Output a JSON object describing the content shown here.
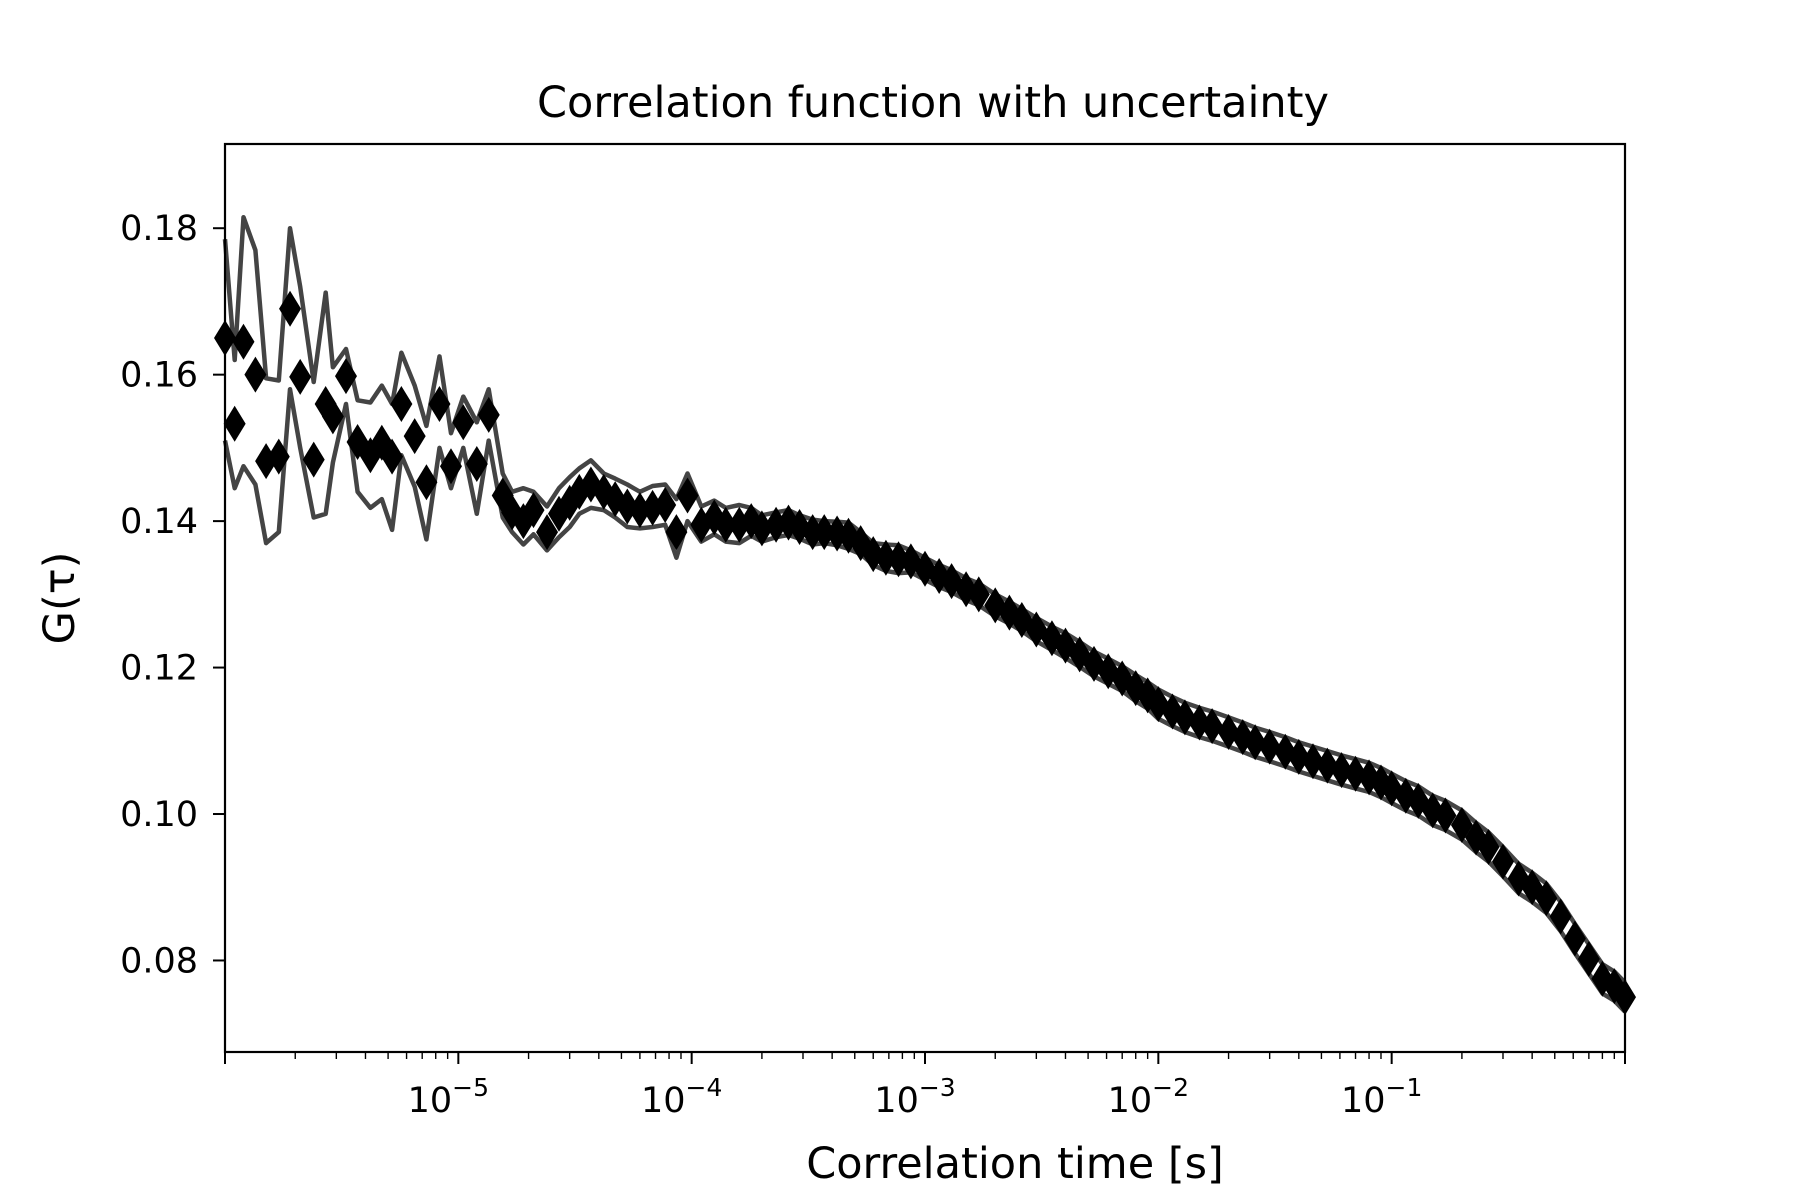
{
  "chart_data": {
    "type": "scatter",
    "title": "Correlation function with uncertainty",
    "xlabel": "Correlation time [s]",
    "ylabel": "G(τ)",
    "xscale": "log",
    "xlim": [
      1e-06,
      1.0
    ],
    "ylim": [
      0.0675,
      0.1915
    ],
    "grid": false,
    "legend": "none",
    "x_ticks": [
      {
        "value": 1e-05,
        "base": "10",
        "exp": "−5"
      },
      {
        "value": 0.0001,
        "base": "10",
        "exp": "−4"
      },
      {
        "value": 0.001,
        "base": "10",
        "exp": "−3"
      },
      {
        "value": 0.01,
        "base": "10",
        "exp": "−2"
      },
      {
        "value": 0.1,
        "base": "10",
        "exp": "−1"
      }
    ],
    "y_ticks": [
      {
        "value": 0.08,
        "label": "0.08"
      },
      {
        "value": 0.1,
        "label": "0.10"
      },
      {
        "value": 0.12,
        "label": "0.12"
      },
      {
        "value": 0.14,
        "label": "0.14"
      },
      {
        "value": 0.16,
        "label": "0.16"
      },
      {
        "value": 0.18,
        "label": "0.18"
      }
    ],
    "colors": {
      "marker": "#000000",
      "band": "#444444",
      "frame": "#000000"
    },
    "series": [
      {
        "marker": "diamond",
        "points": [
          [
            1e-06,
            0.165
          ],
          [
            1.1e-06,
            0.1533
          ],
          [
            1.2e-06,
            0.1645
          ],
          [
            1.35e-06,
            0.16
          ],
          [
            1.5e-06,
            0.1482
          ],
          [
            1.7e-06,
            0.1488
          ],
          [
            1.9e-06,
            0.169
          ],
          [
            2.1e-06,
            0.1597
          ],
          [
            2.4e-06,
            0.1484
          ],
          [
            2.7e-06,
            0.156
          ],
          [
            2.9e-06,
            0.1543
          ],
          [
            3.3e-06,
            0.1598
          ],
          [
            3.7e-06,
            0.1508
          ],
          [
            4.2e-06,
            0.149
          ],
          [
            4.7e-06,
            0.1507
          ],
          [
            5.2e-06,
            0.1488
          ],
          [
            5.7e-06,
            0.156
          ],
          [
            6.5e-06,
            0.1516
          ],
          [
            7.3e-06,
            0.1453
          ],
          [
            8.3e-06,
            0.156
          ],
          [
            9.3e-06,
            0.1475
          ],
          [
            1.05e-05,
            0.1535
          ],
          [
            1.2e-05,
            0.1478
          ],
          [
            1.35e-05,
            0.1545
          ],
          [
            1.55e-05,
            0.1435
          ],
          [
            1.7e-05,
            0.1412
          ],
          [
            1.9e-05,
            0.14
          ],
          [
            2.1e-05,
            0.1415
          ],
          [
            2.4e-05,
            0.1385
          ],
          [
            2.7e-05,
            0.141
          ],
          [
            3e-05,
            0.1425
          ],
          [
            3.3e-05,
            0.144
          ],
          [
            3.7e-05,
            0.145
          ],
          [
            4.2e-05,
            0.144
          ],
          [
            4.7e-05,
            0.143
          ],
          [
            5.3e-05,
            0.142
          ],
          [
            6e-05,
            0.1415
          ],
          [
            6.8e-05,
            0.1418
          ],
          [
            7.7e-05,
            0.1422
          ],
          [
            8.6e-05,
            0.1385
          ],
          [
            9.6e-05,
            0.1435
          ],
          [
            0.00011,
            0.1395
          ],
          [
            0.000125,
            0.1405
          ],
          [
            0.00014,
            0.1395
          ],
          [
            0.00016,
            0.1395
          ],
          [
            0.00018,
            0.14
          ],
          [
            0.0002,
            0.139
          ],
          [
            0.00023,
            0.1395
          ],
          [
            0.00026,
            0.1398
          ],
          [
            0.00029,
            0.1392
          ],
          [
            0.00033,
            0.1385
          ],
          [
            0.00037,
            0.1385
          ],
          [
            0.00042,
            0.1383
          ],
          [
            0.00047,
            0.138
          ],
          [
            0.00053,
            0.137
          ],
          [
            0.0006,
            0.1355
          ],
          [
            0.00068,
            0.135
          ],
          [
            0.00077,
            0.1348
          ],
          [
            0.00087,
            0.1345
          ],
          [
            0.001,
            0.1335
          ],
          [
            0.00115,
            0.1325
          ],
          [
            0.0013,
            0.1318
          ],
          [
            0.0015,
            0.1307
          ],
          [
            0.0017,
            0.13
          ],
          [
            0.002,
            0.1285
          ],
          [
            0.0023,
            0.1275
          ],
          [
            0.0026,
            0.1265
          ],
          [
            0.003,
            0.1252
          ],
          [
            0.0035,
            0.124
          ],
          [
            0.004,
            0.123
          ],
          [
            0.0046,
            0.1218
          ],
          [
            0.0053,
            0.1205
          ],
          [
            0.0061,
            0.1195
          ],
          [
            0.007,
            0.1185
          ],
          [
            0.008,
            0.1172
          ],
          [
            0.009,
            0.1162
          ],
          [
            0.01,
            0.115
          ],
          [
            0.0115,
            0.114
          ],
          [
            0.013,
            0.1132
          ],
          [
            0.015,
            0.1125
          ],
          [
            0.017,
            0.112
          ],
          [
            0.02,
            0.1112
          ],
          [
            0.023,
            0.1105
          ],
          [
            0.026,
            0.1098
          ],
          [
            0.03,
            0.1092
          ],
          [
            0.035,
            0.1085
          ],
          [
            0.04,
            0.1078
          ],
          [
            0.046,
            0.1072
          ],
          [
            0.053,
            0.1066
          ],
          [
            0.061,
            0.106
          ],
          [
            0.07,
            0.1055
          ],
          [
            0.08,
            0.105
          ],
          [
            0.09,
            0.1043
          ],
          [
            0.1,
            0.1035
          ],
          [
            0.115,
            0.1025
          ],
          [
            0.13,
            0.1018
          ],
          [
            0.15,
            0.1005
          ],
          [
            0.17,
            0.0998
          ],
          [
            0.2,
            0.0985
          ],
          [
            0.23,
            0.0968
          ],
          [
            0.26,
            0.0955
          ],
          [
            0.3,
            0.0935
          ],
          [
            0.35,
            0.0912
          ],
          [
            0.4,
            0.09
          ],
          [
            0.46,
            0.0885
          ],
          [
            0.53,
            0.086
          ],
          [
            0.61,
            0.083
          ],
          [
            0.7,
            0.0802
          ],
          [
            0.8,
            0.0775
          ],
          [
            0.9,
            0.0765
          ],
          [
            1.0,
            0.075
          ]
        ]
      }
    ],
    "upper_band": [
      [
        1e-06,
        0.1785
      ],
      [
        1.1e-06,
        0.162
      ],
      [
        1.2e-06,
        0.1815
      ],
      [
        1.35e-06,
        0.177
      ],
      [
        1.5e-06,
        0.1595
      ],
      [
        1.7e-06,
        0.1592
      ],
      [
        1.9e-06,
        0.18
      ],
      [
        2.1e-06,
        0.172
      ],
      [
        2.4e-06,
        0.159
      ],
      [
        2.7e-06,
        0.1712
      ],
      [
        2.9e-06,
        0.161
      ],
      [
        3.3e-06,
        0.1635
      ],
      [
        3.7e-06,
        0.1565
      ],
      [
        4.2e-06,
        0.1562
      ],
      [
        4.7e-06,
        0.1585
      ],
      [
        5.2e-06,
        0.156
      ],
      [
        5.7e-06,
        0.163
      ],
      [
        6.5e-06,
        0.1585
      ],
      [
        7.3e-06,
        0.153
      ],
      [
        8.3e-06,
        0.1625
      ],
      [
        9.3e-06,
        0.152
      ],
      [
        1.05e-05,
        0.157
      ],
      [
        1.2e-05,
        0.1535
      ],
      [
        1.35e-05,
        0.158
      ],
      [
        1.55e-05,
        0.1465
      ],
      [
        1.7e-05,
        0.144
      ],
      [
        1.9e-05,
        0.1445
      ],
      [
        2.1e-05,
        0.144
      ],
      [
        2.4e-05,
        0.142
      ],
      [
        2.7e-05,
        0.1445
      ],
      [
        3e-05,
        0.146
      ],
      [
        3.3e-05,
        0.1472
      ],
      [
        3.7e-05,
        0.1483
      ],
      [
        4.2e-05,
        0.1465
      ],
      [
        4.7e-05,
        0.1458
      ],
      [
        5.3e-05,
        0.145
      ],
      [
        6e-05,
        0.144
      ],
      [
        6.8e-05,
        0.1448
      ],
      [
        7.7e-05,
        0.145
      ],
      [
        8.6e-05,
        0.143
      ],
      [
        9.6e-05,
        0.1465
      ],
      [
        0.00011,
        0.142
      ],
      [
        0.000125,
        0.1428
      ],
      [
        0.00014,
        0.1418
      ],
      [
        0.00016,
        0.1422
      ],
      [
        0.00018,
        0.1418
      ],
      [
        0.0002,
        0.1408
      ],
      [
        0.00023,
        0.1412
      ],
      [
        0.00026,
        0.1415
      ],
      [
        0.00029,
        0.1408
      ],
      [
        0.00033,
        0.1402
      ],
      [
        0.00037,
        0.14
      ],
      [
        0.00042,
        0.1399
      ],
      [
        0.00047,
        0.1398
      ],
      [
        0.00053,
        0.1385
      ],
      [
        0.0006,
        0.137
      ],
      [
        0.00068,
        0.1368
      ],
      [
        0.00077,
        0.1367
      ],
      [
        0.00087,
        0.136
      ],
      [
        0.001,
        0.135
      ],
      [
        0.00115,
        0.134
      ],
      [
        0.0013,
        0.1333
      ],
      [
        0.0015,
        0.1322
      ],
      [
        0.0017,
        0.1315
      ],
      [
        0.002,
        0.13
      ],
      [
        0.0023,
        0.129
      ],
      [
        0.0026,
        0.128
      ],
      [
        0.003,
        0.1268
      ],
      [
        0.0035,
        0.1256
      ],
      [
        0.004,
        0.1247
      ],
      [
        0.0046,
        0.1235
      ],
      [
        0.0053,
        0.1222
      ],
      [
        0.0061,
        0.1212
      ],
      [
        0.007,
        0.1202
      ],
      [
        0.008,
        0.119
      ],
      [
        0.009,
        0.118
      ],
      [
        0.01,
        0.117
      ],
      [
        0.0115,
        0.116
      ],
      [
        0.013,
        0.1152
      ],
      [
        0.015,
        0.1145
      ],
      [
        0.017,
        0.114
      ],
      [
        0.02,
        0.1132
      ],
      [
        0.023,
        0.1125
      ],
      [
        0.026,
        0.1118
      ],
      [
        0.03,
        0.1112
      ],
      [
        0.035,
        0.1105
      ],
      [
        0.04,
        0.1098
      ],
      [
        0.046,
        0.1092
      ],
      [
        0.053,
        0.1086
      ],
      [
        0.061,
        0.108
      ],
      [
        0.07,
        0.1075
      ],
      [
        0.08,
        0.107
      ],
      [
        0.09,
        0.1063
      ],
      [
        0.1,
        0.1055
      ],
      [
        0.115,
        0.1045
      ],
      [
        0.13,
        0.1038
      ],
      [
        0.15,
        0.1025
      ],
      [
        0.17,
        0.1018
      ],
      [
        0.2,
        0.1005
      ],
      [
        0.23,
        0.0988
      ],
      [
        0.26,
        0.0975
      ],
      [
        0.3,
        0.0955
      ],
      [
        0.35,
        0.0932
      ],
      [
        0.4,
        0.092
      ],
      [
        0.46,
        0.0905
      ],
      [
        0.53,
        0.088
      ],
      [
        0.61,
        0.085
      ],
      [
        0.7,
        0.0822
      ],
      [
        0.8,
        0.0795
      ],
      [
        0.9,
        0.0785
      ],
      [
        1.0,
        0.077
      ]
    ],
    "lower_band": [
      [
        1e-06,
        0.151
      ],
      [
        1.1e-06,
        0.1445
      ],
      [
        1.2e-06,
        0.1475
      ],
      [
        1.35e-06,
        0.145
      ],
      [
        1.5e-06,
        0.137
      ],
      [
        1.7e-06,
        0.1385
      ],
      [
        1.9e-06,
        0.158
      ],
      [
        2.1e-06,
        0.15
      ],
      [
        2.4e-06,
        0.1405
      ],
      [
        2.7e-06,
        0.141
      ],
      [
        2.9e-06,
        0.148
      ],
      [
        3.3e-06,
        0.156
      ],
      [
        3.7e-06,
        0.144
      ],
      [
        4.2e-06,
        0.1418
      ],
      [
        4.7e-06,
        0.143
      ],
      [
        5.2e-06,
        0.1388
      ],
      [
        5.7e-06,
        0.149
      ],
      [
        6.5e-06,
        0.1447
      ],
      [
        7.3e-06,
        0.1375
      ],
      [
        8.3e-06,
        0.15
      ],
      [
        9.3e-06,
        0.1445
      ],
      [
        1.05e-05,
        0.15
      ],
      [
        1.2e-05,
        0.141
      ],
      [
        1.35e-05,
        0.151
      ],
      [
        1.55e-05,
        0.1405
      ],
      [
        1.7e-05,
        0.1385
      ],
      [
        1.9e-05,
        0.1368
      ],
      [
        2.1e-05,
        0.1382
      ],
      [
        2.4e-05,
        0.136
      ],
      [
        2.7e-05,
        0.1378
      ],
      [
        3e-05,
        0.1392
      ],
      [
        3.3e-05,
        0.141
      ],
      [
        3.7e-05,
        0.1418
      ],
      [
        4.2e-05,
        0.1415
      ],
      [
        4.7e-05,
        0.1405
      ],
      [
        5.3e-05,
        0.1392
      ],
      [
        6e-05,
        0.139
      ],
      [
        6.8e-05,
        0.1392
      ],
      [
        7.7e-05,
        0.1395
      ],
      [
        8.6e-05,
        0.135
      ],
      [
        9.6e-05,
        0.14
      ],
      [
        0.00011,
        0.1372
      ],
      [
        0.000125,
        0.1382
      ],
      [
        0.00014,
        0.1372
      ],
      [
        0.00016,
        0.137
      ],
      [
        0.00018,
        0.138
      ],
      [
        0.0002,
        0.1372
      ],
      [
        0.00023,
        0.1378
      ],
      [
        0.00026,
        0.1381
      ],
      [
        0.00029,
        0.1376
      ],
      [
        0.00033,
        0.1368
      ],
      [
        0.00037,
        0.137
      ],
      [
        0.00042,
        0.1367
      ],
      [
        0.00047,
        0.1362
      ],
      [
        0.00053,
        0.1355
      ],
      [
        0.0006,
        0.134
      ],
      [
        0.00068,
        0.1332
      ],
      [
        0.00077,
        0.1329
      ],
      [
        0.00087,
        0.133
      ],
      [
        0.001,
        0.132
      ],
      [
        0.00115,
        0.131
      ],
      [
        0.0013,
        0.1303
      ],
      [
        0.0015,
        0.1292
      ],
      [
        0.0017,
        0.1285
      ],
      [
        0.002,
        0.127
      ],
      [
        0.0023,
        0.126
      ],
      [
        0.0026,
        0.125
      ],
      [
        0.003,
        0.1236
      ],
      [
        0.0035,
        0.1224
      ],
      [
        0.004,
        0.1213
      ],
      [
        0.0046,
        0.1201
      ],
      [
        0.0053,
        0.1188
      ],
      [
        0.0061,
        0.1178
      ],
      [
        0.007,
        0.1168
      ],
      [
        0.008,
        0.1154
      ],
      [
        0.009,
        0.1144
      ],
      [
        0.01,
        0.113
      ],
      [
        0.0115,
        0.112
      ],
      [
        0.013,
        0.1112
      ],
      [
        0.015,
        0.1105
      ],
      [
        0.017,
        0.11
      ],
      [
        0.02,
        0.1092
      ],
      [
        0.023,
        0.1085
      ],
      [
        0.026,
        0.1078
      ],
      [
        0.03,
        0.1072
      ],
      [
        0.035,
        0.1065
      ],
      [
        0.04,
        0.1058
      ],
      [
        0.046,
        0.1052
      ],
      [
        0.053,
        0.1046
      ],
      [
        0.061,
        0.104
      ],
      [
        0.07,
        0.1035
      ],
      [
        0.08,
        0.103
      ],
      [
        0.09,
        0.1023
      ],
      [
        0.1,
        0.1015
      ],
      [
        0.115,
        0.1005
      ],
      [
        0.13,
        0.0998
      ],
      [
        0.15,
        0.0985
      ],
      [
        0.17,
        0.0978
      ],
      [
        0.2,
        0.0965
      ],
      [
        0.23,
        0.0948
      ],
      [
        0.26,
        0.0935
      ],
      [
        0.3,
        0.0915
      ],
      [
        0.35,
        0.0892
      ],
      [
        0.4,
        0.088
      ],
      [
        0.46,
        0.0865
      ],
      [
        0.53,
        0.084
      ],
      [
        0.61,
        0.081
      ],
      [
        0.7,
        0.0782
      ],
      [
        0.8,
        0.0755
      ],
      [
        0.9,
        0.0745
      ],
      [
        1.0,
        0.073
      ]
    ]
  }
}
